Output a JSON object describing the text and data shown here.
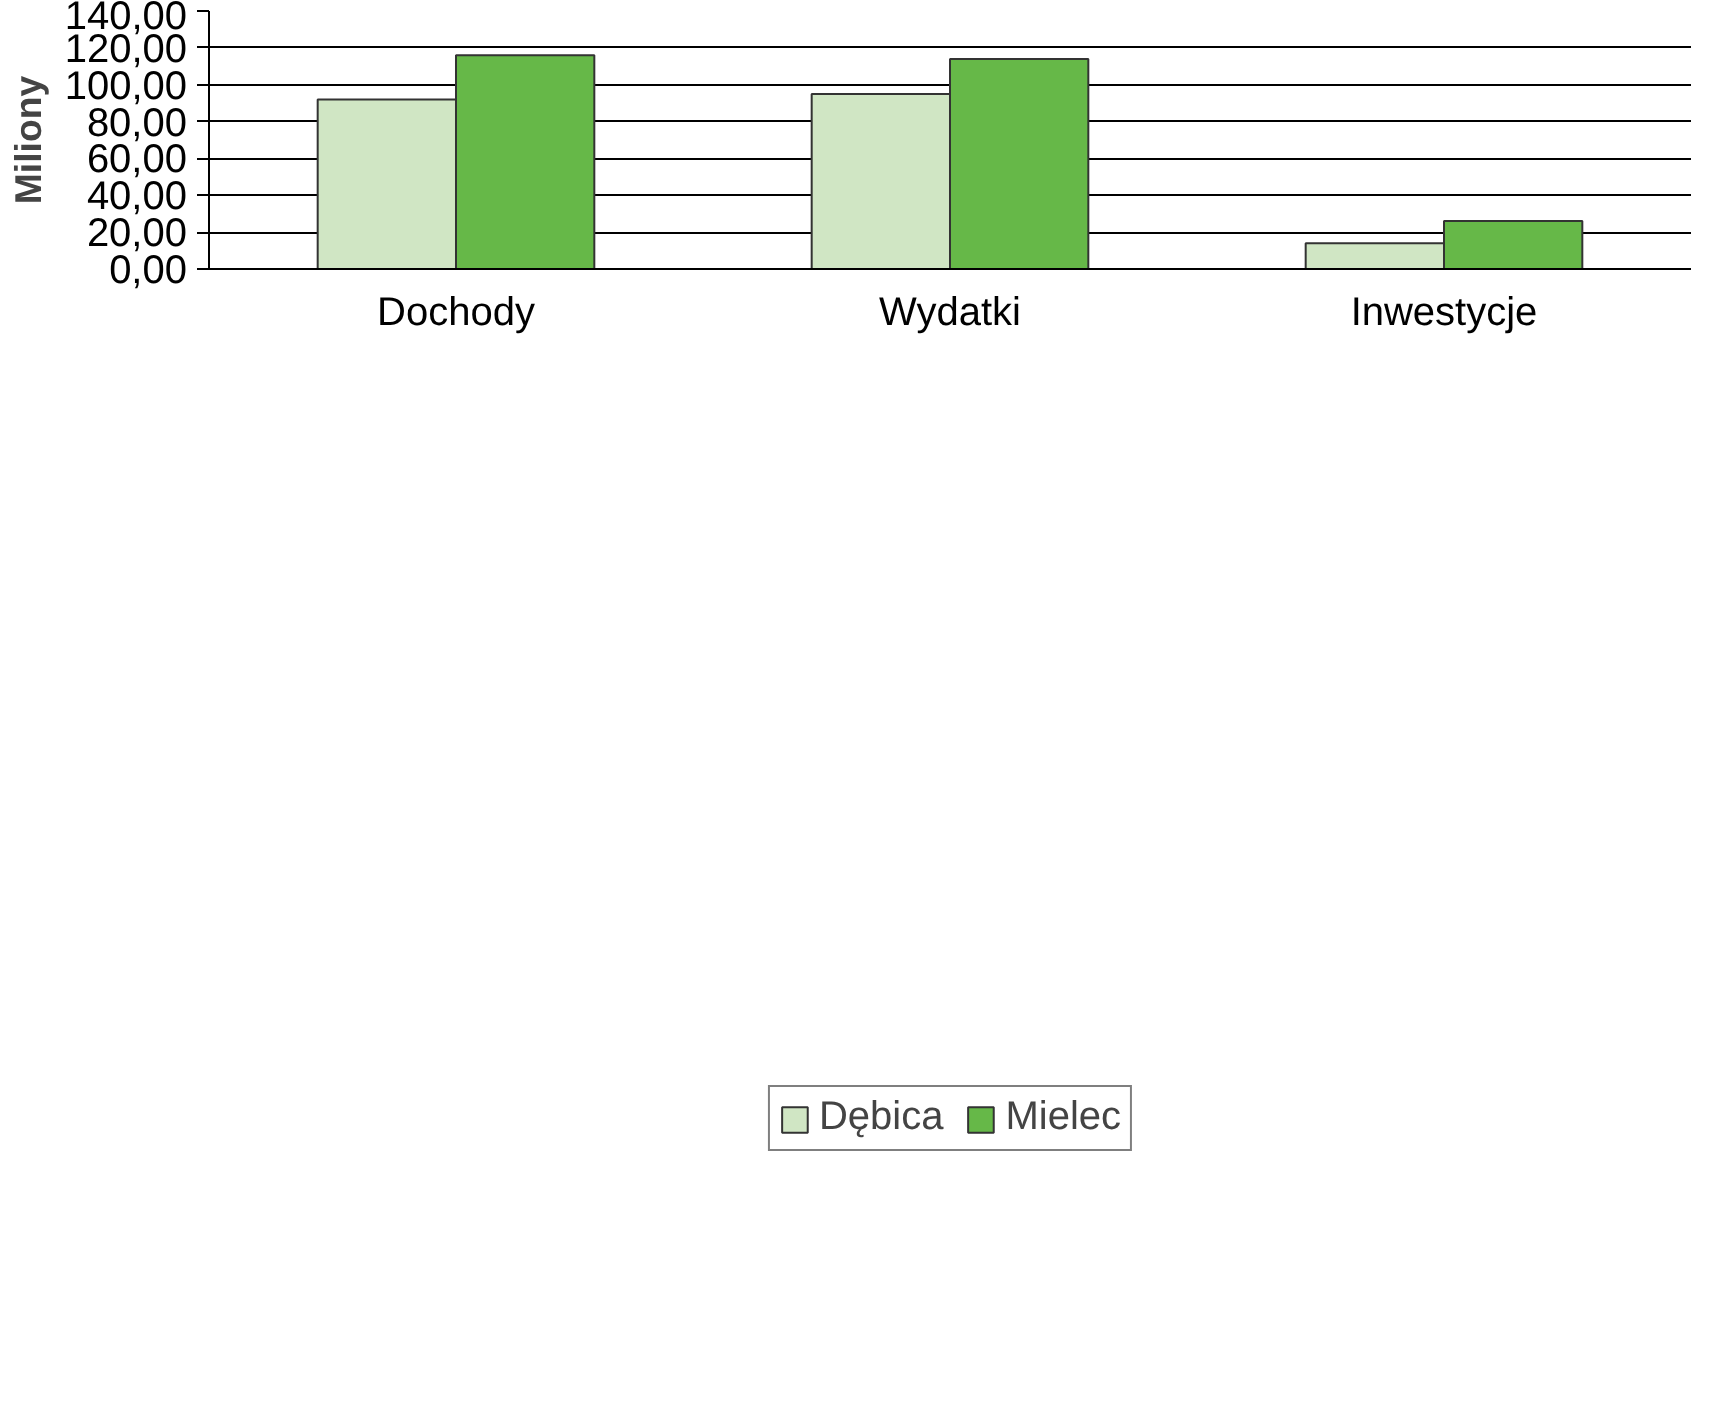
{
  "chart_data": {
    "type": "bar",
    "ylabel": "Miliony",
    "categories": [
      "Dochody",
      "Wydatki",
      "Inwestycje"
    ],
    "series": [
      {
        "name": "Dębica",
        "color": "#d0e6c4",
        "values": [
          92,
          95,
          14
        ]
      },
      {
        "name": "Mielec",
        "color": "#66b848",
        "values": [
          116,
          114,
          26
        ]
      }
    ],
    "ylim": [
      0,
      140
    ],
    "yticks": [
      {
        "value": 0,
        "label": "0,00"
      },
      {
        "value": 20,
        "label": "20,00"
      },
      {
        "value": 40,
        "label": "40,00"
      },
      {
        "value": 60,
        "label": "60,00"
      },
      {
        "value": 80,
        "label": "80,00"
      },
      {
        "value": 100,
        "label": "100,00"
      },
      {
        "value": 120,
        "label": "120,00"
      },
      {
        "value": 140,
        "label": "140,00"
      }
    ],
    "grid": "y",
    "legend": "bottom"
  }
}
